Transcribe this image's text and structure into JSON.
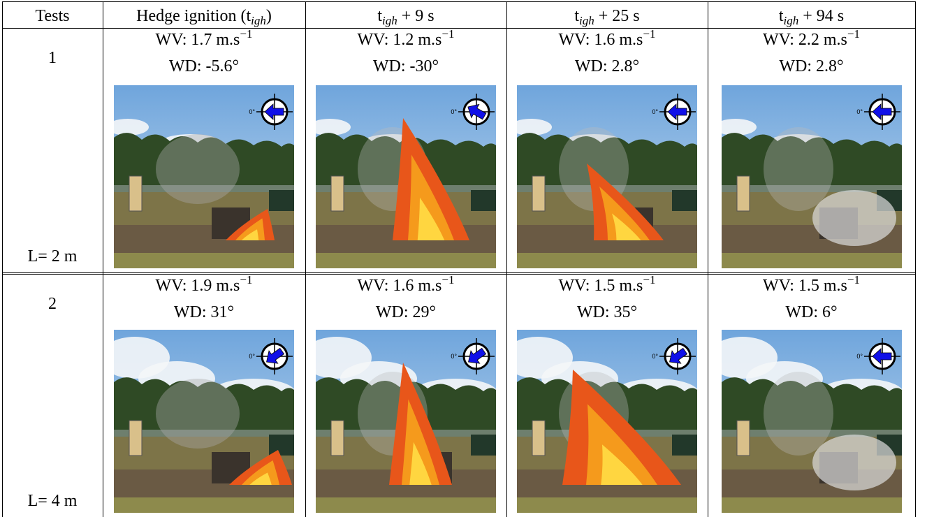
{
  "table": {
    "header": [
      "Tests",
      [
        "Hedge ignition (t",
        "igh",
        ")"
      ],
      [
        "t",
        "igh",
        " + 9 s"
      ],
      [
        "t",
        "igh",
        " + 25 s"
      ],
      [
        "t",
        "igh",
        " + 94 s"
      ]
    ],
    "compass_label": "0°",
    "rows": [
      {
        "test": "1",
        "length": "L= 2 m",
        "cells": [
          {
            "wv": [
              "WV: 1.7 m.s",
              "−1"
            ],
            "wd": "WD: -5.6°"
          },
          {
            "wv": [
              "WV: 1.2 m.s",
              "−1"
            ],
            "wd": "WD: -30°"
          },
          {
            "wv": [
              "WV: 1.6 m.s",
              "−1"
            ],
            "wd": "WD: 2.8°"
          },
          {
            "wv": [
              "WV: 2.2 m.s",
              "−1"
            ],
            "wd": "WD: 2.8°"
          }
        ]
      },
      {
        "test": "2",
        "length": "L= 4 m",
        "cells": [
          {
            "wv": [
              "WV: 1.9 m.s",
              "−1"
            ],
            "wd": "WD: 31°"
          },
          {
            "wv": [
              "WV: 1.6 m.s",
              "−1"
            ],
            "wd": "WD: 29°"
          },
          {
            "wv": [
              "WV: 1.5 m.s",
              "−1"
            ],
            "wd": "WD: 35°"
          },
          {
            "wv": [
              "WV: 1.5 m.s",
              "−1"
            ],
            "wd": "WD: 6°"
          }
        ]
      }
    ]
  }
}
